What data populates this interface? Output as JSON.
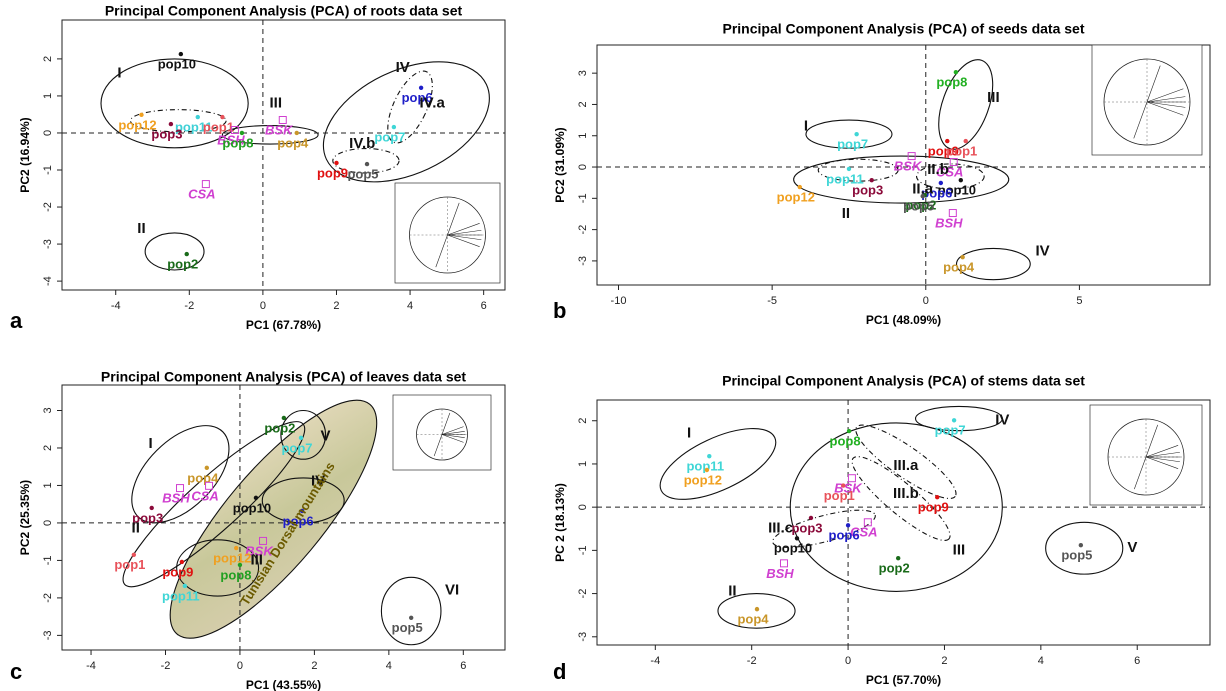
{
  "chart_data": [
    {
      "type": "scatter",
      "panel": "a",
      "title": "Principal Component Analysis (PCA) of roots data set",
      "xlabel": "PC1 (67.78%)",
      "ylabel": "PC2 (16.94%)",
      "xlim": [
        -5.46,
        6.58
      ],
      "ylim": [
        -4.24,
        3.05
      ],
      "xticks": [
        -4,
        -2,
        0,
        2,
        4,
        6
      ],
      "yticks": [
        -4,
        -3,
        -2,
        -1,
        0,
        1,
        2
      ],
      "hlines": [
        0
      ],
      "vlines": [
        0
      ],
      "points": [
        {
          "name": "pop10",
          "x": -2.23,
          "y": 2.13,
          "color": "#111111",
          "marker": "dot"
        },
        {
          "name": "pop12",
          "x": -3.3,
          "y": 0.49,
          "color": "#f0a020",
          "marker": "dot"
        },
        {
          "name": "pop11",
          "x": -1.77,
          "y": 0.43,
          "color": "#3fd0d6",
          "marker": "dot"
        },
        {
          "name": "pop1",
          "x": -1.1,
          "y": 0.43,
          "color": "#e8525a",
          "marker": "dot"
        },
        {
          "name": "pop3",
          "x": -2.5,
          "y": 0.24,
          "color": "#8b0a3a",
          "marker": "dot"
        },
        {
          "name": "BSH",
          "x": -0.76,
          "y": 0.08,
          "color": "#d040d0",
          "marker": "square"
        },
        {
          "name": "pop8",
          "x": -0.57,
          "y": 0,
          "color": "#22a022",
          "marker": "dot"
        },
        {
          "name": "BSK",
          "x": 0.54,
          "y": 0.35,
          "color": "#d040d0",
          "marker": "square"
        },
        {
          "name": "pop4",
          "x": 0.92,
          "y": 0,
          "color": "#c9962a",
          "marker": "dot"
        },
        {
          "name": "pop6",
          "x": 4.3,
          "y": 1.22,
          "color": "#1e1ec8",
          "marker": "dot"
        },
        {
          "name": "pop7",
          "x": 3.56,
          "y": 0.16,
          "color": "#3fd6d6",
          "marker": "dot"
        },
        {
          "name": "pop5",
          "x": 2.83,
          "y": -0.84,
          "color": "#555555",
          "marker": "dot"
        },
        {
          "name": "pop9",
          "x": 2.0,
          "y": -0.81,
          "color": "#e01010",
          "marker": "dot"
        },
        {
          "name": "CSA",
          "x": -1.55,
          "y": -1.38,
          "color": "#d040d0",
          "marker": "square"
        },
        {
          "name": "pop2",
          "x": -2.07,
          "y": -3.27,
          "color": "#1a6b1a",
          "marker": "dot"
        }
      ],
      "annotations": [
        {
          "text": "I",
          "x": -3.9,
          "y": 1.6
        },
        {
          "text": "II",
          "x": -3.3,
          "y": -2.6
        },
        {
          "text": "III",
          "x": 0.35,
          "y": 0.8
        },
        {
          "text": "IV",
          "x": 3.8,
          "y": 1.75
        },
        {
          "text": "IV.a",
          "x": 4.6,
          "y": 0.8
        },
        {
          "text": "IV.b",
          "x": 2.7,
          "y": -0.3
        }
      ]
    },
    {
      "type": "scatter",
      "panel": "b",
      "title": "Principal Component Analysis (PCA) of seeds data set",
      "xlabel": "PC1 (48.09%)",
      "ylabel": "PC2 (31.09%)",
      "xlim": [
        -10.7,
        9.25
      ],
      "ylim": [
        -3.77,
        3.9
      ],
      "xticks": [
        -10,
        -5,
        0,
        5
      ],
      "yticks": [
        -3,
        -2,
        -1,
        0,
        1,
        2,
        3
      ],
      "hlines": [
        0
      ],
      "vlines": [
        0
      ],
      "points": [
        {
          "name": "pop8",
          "x": 0.98,
          "y": 3.03,
          "color": "#22b022",
          "marker": "dot"
        },
        {
          "name": "pop9",
          "x": 0.7,
          "y": 0.83,
          "color": "#e01010",
          "marker": "dot"
        },
        {
          "name": "pop1",
          "x": 1.3,
          "y": 0.83,
          "color": "#e8525a",
          "marker": "dot"
        },
        {
          "name": "pop7",
          "x": -2.25,
          "y": 1.05,
          "color": "#3fd6d6",
          "marker": "dot"
        },
        {
          "name": "BSK",
          "x": -0.46,
          "y": 0.35,
          "color": "#d040d0",
          "marker": "square"
        },
        {
          "name": "CSA",
          "x": 0.91,
          "y": 0.16,
          "color": "#d040d0",
          "marker": "square"
        },
        {
          "name": "pop11",
          "x": -2.5,
          "y": -0.06,
          "color": "#3fd6d6",
          "marker": "dot"
        },
        {
          "name": "pop3",
          "x": -1.76,
          "y": -0.42,
          "color": "#8b0a3a",
          "marker": "dot"
        },
        {
          "name": "pop12",
          "x": -4.1,
          "y": -0.64,
          "color": "#f0a020",
          "marker": "dot"
        },
        {
          "name": "pop10",
          "x": 1.14,
          "y": -0.42,
          "color": "#111111",
          "marker": "dot"
        },
        {
          "name": "pop6",
          "x": 0.49,
          "y": -0.51,
          "color": "#1e1ec8",
          "marker": "dot"
        },
        {
          "name": "pop2",
          "x": -0.03,
          "y": -0.9,
          "color": "#1a6b1a",
          "marker": "dot"
        },
        {
          "name": "pop5",
          "x": -0.1,
          "y": -0.93,
          "color": "#555555",
          "marker": "dot"
        },
        {
          "name": "BSH",
          "x": 0.88,
          "y": -1.47,
          "color": "#d040d0",
          "marker": "square"
        },
        {
          "name": "pop4",
          "x": 1.2,
          "y": -2.88,
          "color": "#c9962a",
          "marker": "dot"
        }
      ],
      "annotations": [
        {
          "text": "I",
          "x": -3.9,
          "y": 1.3
        },
        {
          "text": "II",
          "x": -2.6,
          "y": -1.5
        },
        {
          "text": "III",
          "x": 2.2,
          "y": 2.2
        },
        {
          "text": "IV",
          "x": 3.8,
          "y": -2.7
        },
        {
          "text": "II.a",
          "x": -0.1,
          "y": -0.72
        },
        {
          "text": "II.b",
          "x": 0.4,
          "y": -0.1
        }
      ]
    },
    {
      "type": "scatter",
      "panel": "c",
      "title": "Principal Component Analysis (PCA) of leaves data set",
      "xlabel": "PC1 (43.55%)",
      "ylabel": "PC2 (25.35%)",
      "xlim": [
        -4.78,
        7.12
      ],
      "ylim": [
        -3.39,
        3.68
      ],
      "xticks": [
        -4,
        -2,
        0,
        2,
        4,
        6
      ],
      "yticks": [
        -3,
        -2,
        -1,
        0,
        1,
        2,
        3
      ],
      "hlines": [
        0
      ],
      "vlines": [
        0
      ],
      "points": [
        {
          "name": "pop2",
          "x": 1.18,
          "y": 2.8,
          "color": "#1a6b1a",
          "marker": "dot"
        },
        {
          "name": "pop7",
          "x": 1.64,
          "y": 2.27,
          "color": "#3fd6d6",
          "marker": "dot"
        },
        {
          "name": "pop4",
          "x": -0.89,
          "y": 1.47,
          "color": "#c9962a",
          "marker": "dot"
        },
        {
          "name": "BSH",
          "x": -1.61,
          "y": 0.93,
          "color": "#d040d0",
          "marker": "square"
        },
        {
          "name": "CSA",
          "x": -0.83,
          "y": 0.99,
          "color": "#d040d0",
          "marker": "square"
        },
        {
          "name": "pop3",
          "x": -2.37,
          "y": 0.4,
          "color": "#8b0a3a",
          "marker": "dot"
        },
        {
          "name": "pop10",
          "x": 0.43,
          "y": 0.67,
          "color": "#111111",
          "marker": "dot"
        },
        {
          "name": "pop6",
          "x": 1.67,
          "y": 0.32,
          "color": "#1e1ec8",
          "marker": "dot"
        },
        {
          "name": "pop1",
          "x": -2.85,
          "y": -0.85,
          "color": "#e8525a",
          "marker": "dot"
        },
        {
          "name": "BSK",
          "x": 0.62,
          "y": -0.48,
          "color": "#d040d0",
          "marker": "square"
        },
        {
          "name": "pop12",
          "x": -0.1,
          "y": -0.67,
          "color": "#f0a020",
          "marker": "dot"
        },
        {
          "name": "pop9",
          "x": -1.56,
          "y": -1.04,
          "color": "#e01010",
          "marker": "dot"
        },
        {
          "name": "pop8",
          "x": 0,
          "y": -1.12,
          "color": "#22a022",
          "marker": "dot"
        },
        {
          "name": "pop11",
          "x": -1.48,
          "y": -1.68,
          "color": "#3fd6d6",
          "marker": "dot"
        },
        {
          "name": "pop5",
          "x": 4.6,
          "y": -2.53,
          "color": "#555555",
          "marker": "dot"
        }
      ],
      "annotations": [
        {
          "text": "I",
          "x": -2.4,
          "y": 2.1
        },
        {
          "text": "II",
          "x": -2.8,
          "y": -0.15
        },
        {
          "text": "III",
          "x": 0.45,
          "y": -1.0
        },
        {
          "text": "IV",
          "x": 2.1,
          "y": 1.1
        },
        {
          "text": "V",
          "x": 2.3,
          "y": 2.3
        },
        {
          "text": "VI",
          "x": 5.7,
          "y": -1.8
        },
        {
          "text": "Tunisian Dorsal mountains",
          "x": 1.3,
          "y": -0.3
        }
      ]
    },
    {
      "type": "scatter",
      "panel": "d",
      "title": "Principal Component Analysis (PCA) of stems data set",
      "xlabel": "PC1 (57.70%)",
      "ylabel": "PC 2 (18.13%)",
      "xlim": [
        -5.21,
        7.51
      ],
      "ylim": [
        -3.19,
        2.48
      ],
      "xticks": [
        -4,
        -2,
        0,
        2,
        4,
        6
      ],
      "yticks": [
        -3,
        -2,
        -1,
        0,
        1,
        2
      ],
      "hlines": [
        0
      ],
      "vlines": [
        0
      ],
      "points": [
        {
          "name": "pop7",
          "x": 2.2,
          "y": 2.01,
          "color": "#3fd6d6",
          "marker": "dot"
        },
        {
          "name": "pop11",
          "x": -2.88,
          "y": 1.18,
          "color": "#3fd6d6",
          "marker": "dot"
        },
        {
          "name": "pop12",
          "x": -2.93,
          "y": 0.86,
          "color": "#f0a020",
          "marker": "dot"
        },
        {
          "name": "pop8",
          "x": 0.02,
          "y": 1.76,
          "color": "#22b022",
          "marker": "dot"
        },
        {
          "name": "BSK",
          "x": 0.08,
          "y": 0.67,
          "color": "#d040d0",
          "marker": "square"
        },
        {
          "name": "pop1",
          "x": -0.1,
          "y": 0.5,
          "color": "#e8525a",
          "marker": "dot"
        },
        {
          "name": "pop9",
          "x": 1.85,
          "y": 0.23,
          "color": "#e01010",
          "marker": "dot"
        },
        {
          "name": "pop3",
          "x": -0.77,
          "y": -0.25,
          "color": "#8b0a3a",
          "marker": "dot"
        },
        {
          "name": "CSA",
          "x": 0.41,
          "y": -0.35,
          "color": "#d040d0",
          "marker": "square"
        },
        {
          "name": "pop6",
          "x": 0,
          "y": -0.42,
          "color": "#1e1ec8",
          "marker": "dot"
        },
        {
          "name": "pop10",
          "x": -1.06,
          "y": -0.72,
          "color": "#111111",
          "marker": "dot"
        },
        {
          "name": "pop2",
          "x": 1.04,
          "y": -1.18,
          "color": "#1a6b1a",
          "marker": "dot"
        },
        {
          "name": "BSH",
          "x": -1.33,
          "y": -1.3,
          "color": "#d040d0",
          "marker": "square"
        },
        {
          "name": "pop4",
          "x": -1.89,
          "y": -2.36,
          "color": "#c9962a",
          "marker": "dot"
        },
        {
          "name": "pop5",
          "x": 4.83,
          "y": -0.88,
          "color": "#555555",
          "marker": "dot"
        }
      ],
      "annotations": [
        {
          "text": "I",
          "x": -3.3,
          "y": 1.7
        },
        {
          "text": "II",
          "x": -2.4,
          "y": -1.95
        },
        {
          "text": "III",
          "x": 2.3,
          "y": -1.0
        },
        {
          "text": "IV",
          "x": 3.2,
          "y": 2.0
        },
        {
          "text": "V",
          "x": 5.9,
          "y": -0.95
        },
        {
          "text": "III.a",
          "x": 1.2,
          "y": 0.95
        },
        {
          "text": "III.b",
          "x": 1.2,
          "y": 0.3
        },
        {
          "text": "III.c",
          "x": -1.4,
          "y": -0.5
        }
      ]
    }
  ]
}
